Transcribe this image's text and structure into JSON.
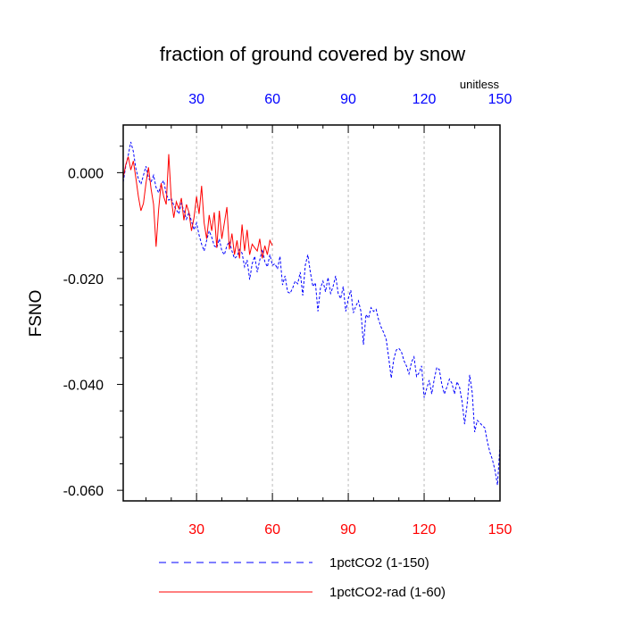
{
  "chart_data": {
    "type": "line",
    "title": "fraction of ground covered by snow",
    "units": "unitless",
    "ylabel": "FSNO",
    "xlim": [
      1,
      150
    ],
    "ylim": [
      -0.062,
      0.009
    ],
    "yticks": [
      0.0,
      -0.02,
      -0.04,
      -0.06
    ],
    "ytick_labels": [
      "0.000",
      "-0.020",
      "-0.040",
      "-0.060"
    ],
    "xticks": [
      30,
      60,
      90,
      120,
      150
    ],
    "xtick_labels_top": [
      "30",
      "60",
      "90",
      "120",
      "150"
    ],
    "xtick_labels_bottom": [
      "30",
      "60",
      "90",
      "120",
      "150"
    ],
    "grid": "vertical dashed at major x ticks",
    "legend_placement": "bottom",
    "series": [
      {
        "name": "1pctCO2 (1-150)",
        "color": "#0000ff",
        "style": "dashed",
        "x_start": 1,
        "values": [
          -0.0018,
          0.0012,
          0.0033,
          0.0058,
          0.004,
          0.0008,
          -0.0012,
          -0.0022,
          -0.0005,
          0.0012,
          -0.001,
          -0.0018,
          -0.0005,
          -0.0028,
          -0.0038,
          -0.0022,
          -0.0015,
          -0.004,
          -0.0052,
          -0.0048,
          -0.0062,
          -0.007,
          -0.0078,
          -0.0058,
          -0.0072,
          -0.0088,
          -0.0075,
          -0.0092,
          -0.0108,
          -0.0095,
          -0.0118,
          -0.0135,
          -0.0148,
          -0.0128,
          -0.011,
          -0.0122,
          -0.0138,
          -0.0142,
          -0.0125,
          -0.0148,
          -0.0155,
          -0.0138,
          -0.013,
          -0.0148,
          -0.0162,
          -0.0158,
          -0.0145,
          -0.0152,
          -0.0178,
          -0.0165,
          -0.0202,
          -0.0172,
          -0.0158,
          -0.0188,
          -0.0165,
          -0.0145,
          -0.0168,
          -0.0178,
          -0.0155,
          -0.0175,
          -0.0172,
          -0.0182,
          -0.0158,
          -0.0212,
          -0.0195,
          -0.0225,
          -0.0228,
          -0.0218,
          -0.0205,
          -0.021,
          -0.0188,
          -0.0232,
          -0.0175,
          -0.0155,
          -0.0188,
          -0.0215,
          -0.0208,
          -0.0262,
          -0.0218,
          -0.0205,
          -0.0225,
          -0.0198,
          -0.0228,
          -0.0215,
          -0.0195,
          -0.0228,
          -0.0238,
          -0.0215,
          -0.0262,
          -0.0238,
          -0.0222,
          -0.0265,
          -0.0252,
          -0.0242,
          -0.0262,
          -0.0325,
          -0.0268,
          -0.0275,
          -0.0255,
          -0.0262,
          -0.0258,
          -0.0278,
          -0.0292,
          -0.0302,
          -0.0315,
          -0.035,
          -0.0388,
          -0.0352,
          -0.0335,
          -0.0332,
          -0.0338,
          -0.0355,
          -0.0365,
          -0.038,
          -0.0358,
          -0.0348,
          -0.0385,
          -0.0378,
          -0.0365,
          -0.0425,
          -0.0408,
          -0.0392,
          -0.0418,
          -0.039,
          -0.0368,
          -0.0372,
          -0.04,
          -0.0418,
          -0.0405,
          -0.039,
          -0.0398,
          -0.0418,
          -0.0395,
          -0.0405,
          -0.0432,
          -0.0475,
          -0.0438,
          -0.0382,
          -0.0415,
          -0.049,
          -0.0468,
          -0.0472,
          -0.0478,
          -0.0482,
          -0.0508,
          -0.0528,
          -0.0542,
          -0.0562,
          -0.059,
          -0.0515
        ]
      },
      {
        "name": "1pctCO2-rad (1-60)",
        "color": "#ff0000",
        "style": "solid",
        "x_start": 1,
        "values": [
          -0.001,
          0.0015,
          0.003,
          0.0005,
          0.0022,
          -0.001,
          -0.0045,
          -0.0072,
          -0.0058,
          -0.002,
          0.001,
          -0.003,
          -0.006,
          -0.014,
          -0.007,
          -0.002,
          -0.0045,
          -0.006,
          0.0035,
          -0.005,
          -0.0085,
          -0.0055,
          -0.0068,
          -0.0048,
          -0.009,
          -0.006,
          -0.0075,
          -0.011,
          -0.0085,
          -0.0045,
          -0.0078,
          -0.0025,
          -0.0095,
          -0.0125,
          -0.008,
          -0.011,
          -0.0075,
          -0.0142,
          -0.0072,
          -0.0125,
          -0.0095,
          -0.0065,
          -0.0145,
          -0.0115,
          -0.0155,
          -0.0128,
          -0.0162,
          -0.0098,
          -0.0148,
          -0.0108,
          -0.0155,
          -0.0135,
          -0.0142,
          -0.0148,
          -0.0125,
          -0.0162,
          -0.0138,
          -0.0155,
          -0.0128,
          -0.0138
        ]
      }
    ]
  }
}
